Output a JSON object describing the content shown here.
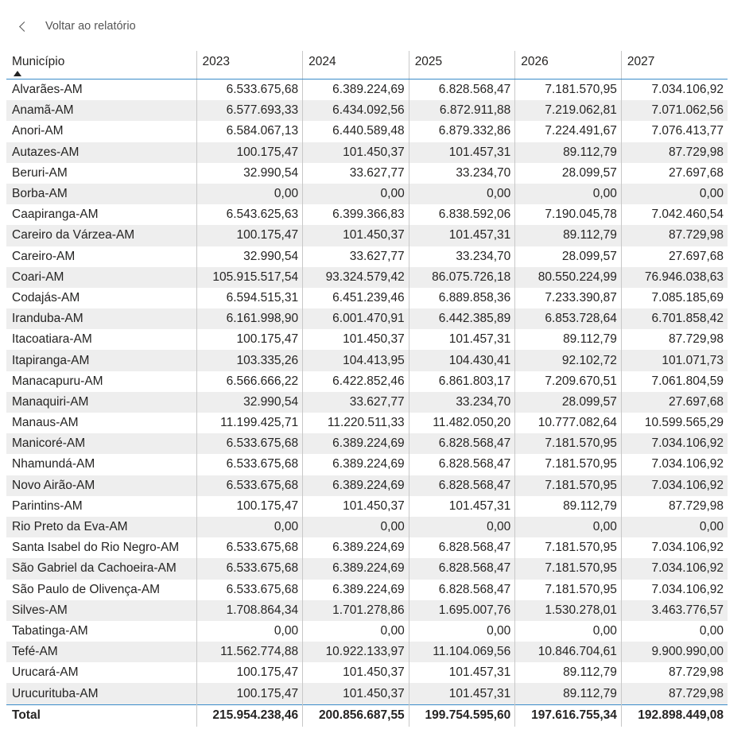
{
  "nav": {
    "back_label": "Voltar ao relatório"
  },
  "table": {
    "columns": [
      "Município",
      "2023",
      "2024",
      "2025",
      "2026",
      "2027"
    ],
    "sort": {
      "column": "Município",
      "direction": "ascending"
    },
    "rows": [
      [
        "Alvarães-AM",
        "6.533.675,68",
        "6.389.224,69",
        "6.828.568,47",
        "7.181.570,95",
        "7.034.106,92"
      ],
      [
        "Anamã-AM",
        "6.577.693,33",
        "6.434.092,56",
        "6.872.911,88",
        "7.219.062,81",
        "7.071.062,56"
      ],
      [
        "Anori-AM",
        "6.584.067,13",
        "6.440.589,48",
        "6.879.332,86",
        "7.224.491,67",
        "7.076.413,77"
      ],
      [
        "Autazes-AM",
        "100.175,47",
        "101.450,37",
        "101.457,31",
        "89.112,79",
        "87.729,98"
      ],
      [
        "Beruri-AM",
        "32.990,54",
        "33.627,77",
        "33.234,70",
        "28.099,57",
        "27.697,68"
      ],
      [
        "Borba-AM",
        "0,00",
        "0,00",
        "0,00",
        "0,00",
        "0,00"
      ],
      [
        "Caapiranga-AM",
        "6.543.625,63",
        "6.399.366,83",
        "6.838.592,06",
        "7.190.045,78",
        "7.042.460,54"
      ],
      [
        "Careiro da Várzea-AM",
        "100.175,47",
        "101.450,37",
        "101.457,31",
        "89.112,79",
        "87.729,98"
      ],
      [
        "Careiro-AM",
        "32.990,54",
        "33.627,77",
        "33.234,70",
        "28.099,57",
        "27.697,68"
      ],
      [
        "Coari-AM",
        "105.915.517,54",
        "93.324.579,42",
        "86.075.726,18",
        "80.550.224,99",
        "76.946.038,63"
      ],
      [
        "Codajás-AM",
        "6.594.515,31",
        "6.451.239,46",
        "6.889.858,36",
        "7.233.390,87",
        "7.085.185,69"
      ],
      [
        "Iranduba-AM",
        "6.161.998,90",
        "6.001.470,91",
        "6.442.385,89",
        "6.853.728,64",
        "6.701.858,42"
      ],
      [
        "Itacoatiara-AM",
        "100.175,47",
        "101.450,37",
        "101.457,31",
        "89.112,79",
        "87.729,98"
      ],
      [
        "Itapiranga-AM",
        "103.335,26",
        "104.413,95",
        "104.430,41",
        "92.102,72",
        "101.071,73"
      ],
      [
        "Manacapuru-AM",
        "6.566.666,22",
        "6.422.852,46",
        "6.861.803,17",
        "7.209.670,51",
        "7.061.804,59"
      ],
      [
        "Manaquiri-AM",
        "32.990,54",
        "33.627,77",
        "33.234,70",
        "28.099,57",
        "27.697,68"
      ],
      [
        "Manaus-AM",
        "11.199.425,71",
        "11.220.511,33",
        "11.482.050,20",
        "10.777.082,64",
        "10.599.565,29"
      ],
      [
        "Manicoré-AM",
        "6.533.675,68",
        "6.389.224,69",
        "6.828.568,47",
        "7.181.570,95",
        "7.034.106,92"
      ],
      [
        "Nhamundá-AM",
        "6.533.675,68",
        "6.389.224,69",
        "6.828.568,47",
        "7.181.570,95",
        "7.034.106,92"
      ],
      [
        "Novo Airão-AM",
        "6.533.675,68",
        "6.389.224,69",
        "6.828.568,47",
        "7.181.570,95",
        "7.034.106,92"
      ],
      [
        "Parintins-AM",
        "100.175,47",
        "101.450,37",
        "101.457,31",
        "89.112,79",
        "87.729,98"
      ],
      [
        "Rio Preto da Eva-AM",
        "0,00",
        "0,00",
        "0,00",
        "0,00",
        "0,00"
      ],
      [
        "Santa Isabel do Rio Negro-AM",
        "6.533.675,68",
        "6.389.224,69",
        "6.828.568,47",
        "7.181.570,95",
        "7.034.106,92"
      ],
      [
        "São Gabriel da Cachoeira-AM",
        "6.533.675,68",
        "6.389.224,69",
        "6.828.568,47",
        "7.181.570,95",
        "7.034.106,92"
      ],
      [
        "São Paulo de Olivença-AM",
        "6.533.675,68",
        "6.389.224,69",
        "6.828.568,47",
        "7.181.570,95",
        "7.034.106,92"
      ],
      [
        "Silves-AM",
        "1.708.864,34",
        "1.701.278,86",
        "1.695.007,76",
        "1.530.278,01",
        "3.463.776,57"
      ],
      [
        "Tabatinga-AM",
        "0,00",
        "0,00",
        "0,00",
        "0,00",
        "0,00"
      ],
      [
        "Tefé-AM",
        "11.562.774,88",
        "10.922.133,97",
        "11.104.069,56",
        "10.846.704,61",
        "9.900.990,00"
      ],
      [
        "Urucará-AM",
        "100.175,47",
        "101.450,37",
        "101.457,31",
        "89.112,79",
        "87.729,98"
      ],
      [
        "Urucurituba-AM",
        "100.175,47",
        "101.450,37",
        "101.457,31",
        "89.112,79",
        "87.729,98"
      ]
    ],
    "total": [
      "Total",
      "215.954.238,46",
      "200.856.687,55",
      "199.754.595,60",
      "197.616.755,34",
      "192.898.449,08"
    ]
  },
  "colors": {
    "accent_line": "#3a8bc9",
    "stripe": "#eeeeee"
  }
}
